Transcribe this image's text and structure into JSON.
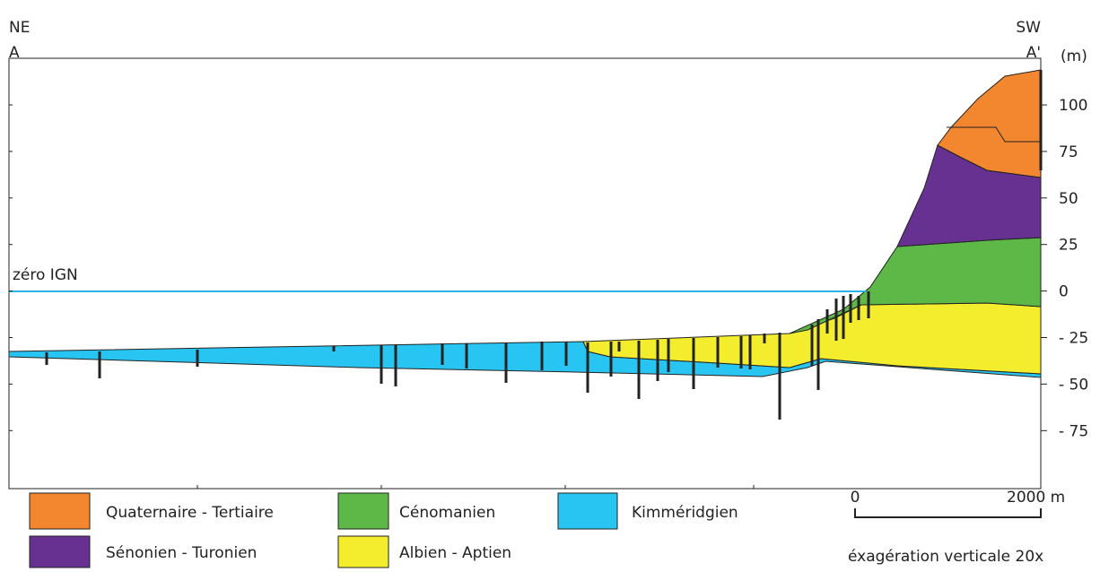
{
  "header": {
    "left_direction": "NE",
    "left_point": "A",
    "right_direction": "SW",
    "right_point": "A'"
  },
  "axis": {
    "unit": "(m)",
    "ticks": [
      "100",
      "75",
      "50",
      "25",
      "0",
      "- 25",
      "- 50",
      "- 75"
    ]
  },
  "reference_line": "zéro IGN",
  "legend": [
    "Quaternaire - Tertiaire",
    "Cénomanien",
    "Kimméridgien",
    "Sénonien - Turonien",
    "Albien - Aptien"
  ],
  "scale_bar": {
    "start": "0",
    "end": "2000 m"
  },
  "note": "éxagération verticale 20x"
}
